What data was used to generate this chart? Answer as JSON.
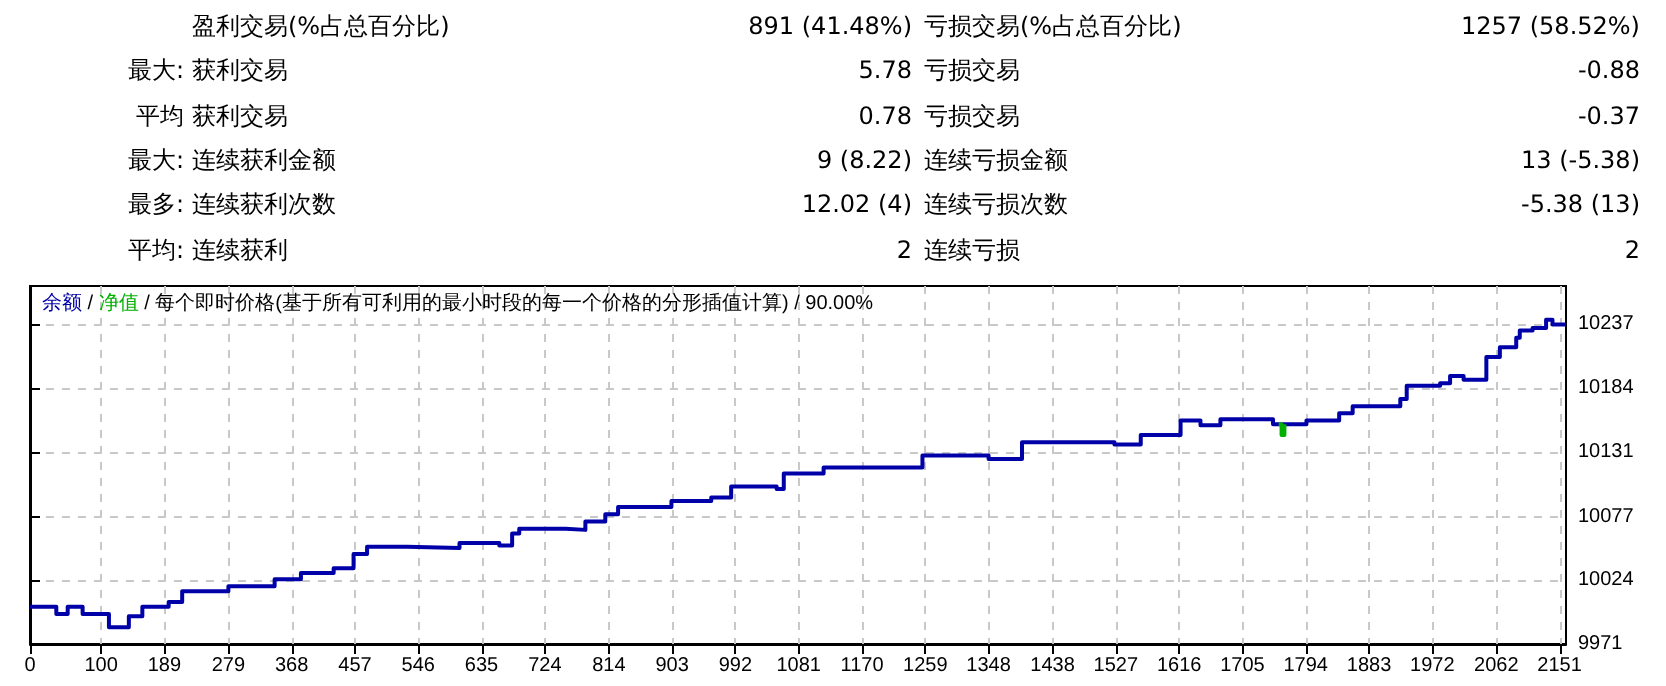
{
  "chart_data": [
    {
      "type": "other",
      "annotations": [
        "盈利交易(%占总百分比)",
        "891 (41.48%)",
        "亏损交易(%占总百分比)",
        "1257 (58.52%)",
        "最大: 获利交易",
        "5.78",
        "亏损交易",
        "-0.88",
        "平均 获利交易",
        "0.78",
        "亏损交易",
        "-0.37",
        "最大: 连续获利金额",
        "9 (8.22)",
        "连续亏损金额",
        "13 (-5.38)",
        "最多: 连续获利次数",
        "12.02 (4)",
        "连续亏损次数",
        "-5.38 (13)",
        "平均: 连续获利",
        "2",
        "连续亏损",
        "2"
      ]
    },
    {
      "type": "step",
      "title": "/ 每个即时价格(基于所有可利用的最小时段的每一个价格的分形插值计算) / 90.00%",
      "annotations": [
        "/"
      ],
      "xlim": [
        0,
        2160
      ],
      "xticks": [
        0,
        100,
        189,
        279,
        368,
        457,
        546,
        635,
        724,
        814,
        903,
        992,
        1081,
        1170,
        1259,
        1348,
        1438,
        1527,
        1616,
        1705,
        1794,
        1883,
        1972,
        2062,
        2151
      ],
      "ylim": [
        9971,
        10269
      ],
      "yticks": [
        9971,
        10024,
        10077,
        10131,
        10184,
        10237
      ],
      "grid": true,
      "legend": false,
      "marker": "none",
      "series": [
        {
          "name": "余额",
          "color": "#0000a8",
          "x": [
            0,
            37,
            53,
            74,
            111,
            139,
            158,
            195,
            214,
            251,
            279,
            344,
            381,
            427,
            455,
            474,
            530,
            604,
            660,
            678,
            688,
            753,
            781,
            809,
            827,
            902,
            958,
            986,
            1050,
            1060,
            1116,
            1172,
            1255,
            1348,
            1395,
            1469,
            1525,
            1562,
            1618,
            1646,
            1674,
            1748,
            1795,
            1841,
            1860,
            1927,
            1936,
            1983,
            1997,
            2016,
            2048,
            2067,
            2090,
            2095,
            2113,
            2132,
            2141,
            2160
          ],
          "values": [
            10002,
            9996,
            10002,
            9996,
            9985,
            9994,
            10002,
            10006,
            10015,
            10015,
            10019,
            10025,
            10030,
            10034,
            10046,
            10052,
            10051,
            10055,
            10053,
            10063,
            10067,
            10066,
            10073,
            10079,
            10085,
            10090,
            10093,
            10102,
            10100,
            10113,
            10118,
            10118,
            10128,
            10125,
            10139,
            10139,
            10137,
            10145,
            10157,
            10153,
            10158,
            10154,
            10157,
            10163,
            10169,
            10175,
            10186,
            10188,
            10194,
            10191,
            10210,
            10218,
            10226,
            10232,
            10234,
            10241,
            10237,
            10236
          ]
        },
        {
          "name": "净值",
          "color": "#00b000",
          "x": [
            1756,
            1760,
            1764
          ],
          "values": [
            10154,
            10145,
            10154
          ]
        }
      ]
    }
  ]
}
